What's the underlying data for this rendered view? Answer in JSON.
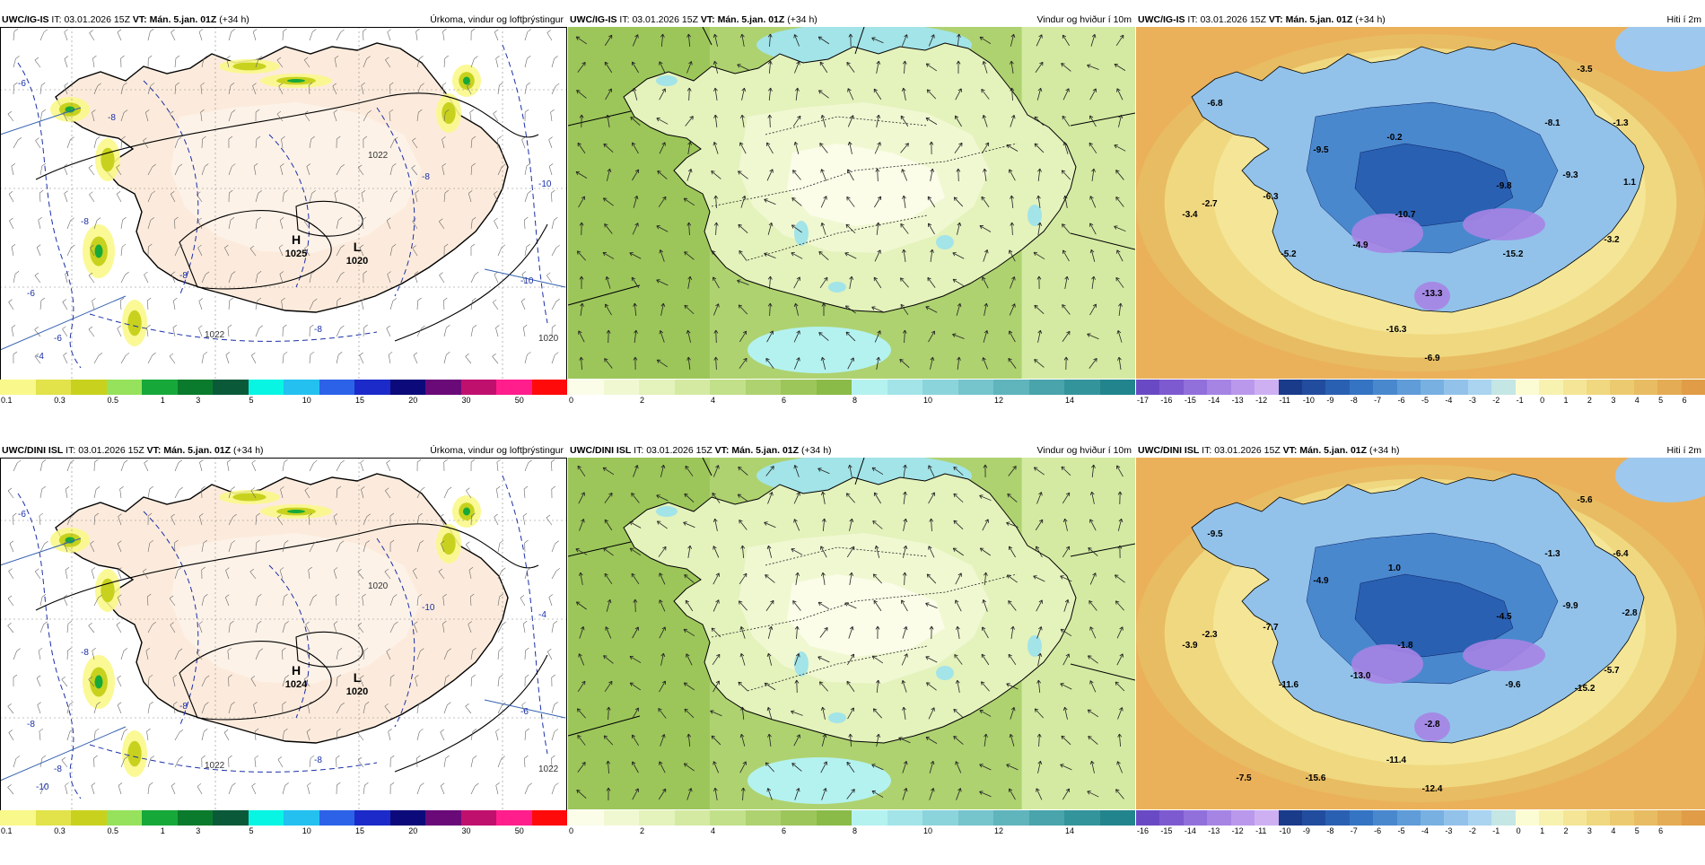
{
  "colors": {
    "land_precip": "#fcebdc",
    "sea_precip": "#ffffff",
    "isobar": "#1a2fa8",
    "wind_base": "#a7cd6a",
    "temp_sea": "#eab15a"
  },
  "rows": [
    {
      "panels": [
        {
          "kind": "precip",
          "model": "UWC/IG-IS",
          "it_label": "IT:",
          "it_value": "03.01.2026 15Z",
          "vt_label": "VT:",
          "vt_value": "Mán. 5.jan. 01Z",
          "lead": "(+34 h)",
          "title": "Úrkoma, vindur og loftþrýstingur",
          "pressure_centers": [
            {
              "type": "H",
              "value": "1025"
            },
            {
              "type": "L",
              "value": "1020"
            }
          ],
          "isobar_labels": [
            "1022",
            "1022",
            "1020"
          ],
          "dashed_labels": [
            "-6",
            "-8",
            "-8",
            "-8",
            "-6",
            "-4",
            "-8",
            "-10",
            "-10",
            "-6",
            "-8"
          ],
          "legend": {
            "colors": [
              "#f9f88a",
              "#e2e24b",
              "#c8d21e",
              "#96e25c",
              "#17a83a",
              "#0a7b2c",
              "#0a5a3a",
              "#08f5e4",
              "#23c0f0",
              "#2c62e8",
              "#1b2ac8",
              "#0c0a7a",
              "#6a0a78",
              "#c0106e",
              "#ff1e8c",
              "#ff0a0a"
            ],
            "ticks": [
              "0.1",
              "0.3",
              "0.5",
              "1",
              "3",
              "5",
              "10",
              "15",
              "20",
              "30",
              "50"
            ]
          }
        },
        {
          "kind": "wind",
          "model": "UWC/IG-IS",
          "it_label": "IT:",
          "it_value": "03.01.2026 15Z",
          "vt_label": "VT:",
          "vt_value": "Mán. 5.jan. 01Z",
          "lead": "(+34 h)",
          "title": "Vindur og hviður í 10m",
          "legend": {
            "colors": [
              "#fbfde8",
              "#f0f8d2",
              "#e4f2bc",
              "#d4eaa2",
              "#c2e08a",
              "#aed270",
              "#9cc65a",
              "#8abb48",
              "#b4f2f0",
              "#a2e4e8",
              "#8cd4dc",
              "#76c4cc",
              "#60b4bc",
              "#4aa4ac",
              "#34949c",
              "#22848c"
            ],
            "ticks": [
              "0",
              "2",
              "4",
              "6",
              "8",
              "10",
              "12",
              "14"
            ]
          }
        },
        {
          "kind": "temp",
          "model": "UWC/IG-IS",
          "it_label": "IT:",
          "it_value": "03.01.2026 15Z",
          "vt_label": "VT:",
          "vt_value": "Mán. 5.jan. 01Z",
          "lead": "(+34 h)",
          "title": "Hiti í 2m",
          "temp_labels": [
            "-3.5",
            "-6.8",
            "-9.5",
            "-0.2",
            "-8.1",
            "-1.3",
            "-9.8",
            "-9.3",
            "1.1",
            "-6.3",
            "-2.7",
            "-3.4",
            "-10.7",
            "-5.2",
            "-4.9",
            "-15.2",
            "-3.2",
            "-13.3",
            "-16.3",
            "-6.9"
          ],
          "legend": {
            "colors": [
              "#6a4ac4",
              "#7e5ad0",
              "#9270dc",
              "#a684e4",
              "#ba98ec",
              "#ceb0f2",
              "#1a3a8a",
              "#224c9e",
              "#2a60b2",
              "#3474c2",
              "#4a88ce",
              "#609cd8",
              "#78b0e2",
              "#92c2ea",
              "#aad4f0",
              "#c4e6e4",
              "#fcfcd4",
              "#f8f2b0",
              "#f4e696",
              "#f0d880",
              "#eccb70",
              "#e8bc62",
              "#e4ac54",
              "#e09c46"
            ],
            "ticks": [
              "-17",
              "-16",
              "-15",
              "-14",
              "-13",
              "-12",
              "-11",
              "-10",
              "-9",
              "-8",
              "-7",
              "-6",
              "-5",
              "-4",
              "-3",
              "-2",
              "-1",
              "0",
              "1",
              "2",
              "3",
              "4",
              "5",
              "6"
            ]
          }
        }
      ]
    },
    {
      "panels": [
        {
          "kind": "precip",
          "model": "UWC/DINI ISL",
          "it_label": "IT:",
          "it_value": "03.01.2026 15Z",
          "vt_label": "VT:",
          "vt_value": "Mán. 5.jan. 01Z",
          "lead": "(+34 h)",
          "title": "Úrkoma, vindur og loftþrýstingur",
          "pressure_centers": [
            {
              "type": "H",
              "value": "1024"
            },
            {
              "type": "L",
              "value": "1020"
            }
          ],
          "isobar_labels": [
            "1020",
            "1022",
            "1022"
          ],
          "dashed_labels": [
            "-6",
            "-8",
            "-8",
            "-8",
            "-8",
            "-10",
            "-10",
            "-4",
            "-6",
            "-8"
          ],
          "legend": {
            "colors": [
              "#f9f88a",
              "#e2e24b",
              "#c8d21e",
              "#96e25c",
              "#17a83a",
              "#0a7b2c",
              "#0a5a3a",
              "#08f5e4",
              "#23c0f0",
              "#2c62e8",
              "#1b2ac8",
              "#0c0a7a",
              "#6a0a78",
              "#c0106e",
              "#ff1e8c",
              "#ff0a0a"
            ],
            "ticks": [
              "0.1",
              "0.3",
              "0.5",
              "1",
              "3",
              "5",
              "10",
              "15",
              "20",
              "30",
              "50"
            ]
          }
        },
        {
          "kind": "wind",
          "model": "UWC/DINI ISL",
          "it_label": "IT:",
          "it_value": "03.01.2026 15Z",
          "vt_label": "VT:",
          "vt_value": "Mán. 5.jan. 01Z",
          "lead": "(+34 h)",
          "title": "Vindur og hviður í 10m",
          "legend": {
            "colors": [
              "#fbfde8",
              "#f0f8d2",
              "#e4f2bc",
              "#d4eaa2",
              "#c2e08a",
              "#aed270",
              "#9cc65a",
              "#8abb48",
              "#b4f2f0",
              "#a2e4e8",
              "#8cd4dc",
              "#76c4cc",
              "#60b4bc",
              "#4aa4ac",
              "#34949c",
              "#22848c"
            ],
            "ticks": [
              "0",
              "2",
              "4",
              "6",
              "8",
              "10",
              "12",
              "14"
            ]
          }
        },
        {
          "kind": "temp",
          "model": "UWC/DINI ISL",
          "it_label": "IT:",
          "it_value": "03.01.2026 15Z",
          "vt_label": "VT:",
          "vt_value": "Mán. 5.jan. 01Z",
          "lead": "(+34 h)",
          "title": "Hiti í 2m",
          "temp_labels": [
            "-5.6",
            "-9.5",
            "-4.9",
            "1.0",
            "-1.3",
            "-6.4",
            "-4.5",
            "-9.9",
            "-2.8",
            "-7.7",
            "-2.3",
            "-3.9",
            "-1.8",
            "-11.6",
            "-13.0",
            "-9.6",
            "-5.7",
            "-2.8",
            "-11.4",
            "-12.4",
            "-15.2",
            "-15.6",
            "-7.5"
          ],
          "legend": {
            "colors": [
              "#6a4ac4",
              "#7e5ad0",
              "#9270dc",
              "#a684e4",
              "#ba98ec",
              "#ceb0f2",
              "#1a3a8a",
              "#224c9e",
              "#2a60b2",
              "#3474c2",
              "#4a88ce",
              "#609cd8",
              "#78b0e2",
              "#92c2ea",
              "#aad4f0",
              "#c4e6e4",
              "#fcfcd4",
              "#f8f2b0",
              "#f4e696",
              "#f0d880",
              "#eccb70",
              "#e8bc62",
              "#e4ac54",
              "#e09c46"
            ],
            "ticks": [
              "-16",
              "-15",
              "-14",
              "-13",
              "-12",
              "-11",
              "-10",
              "-9",
              "-8",
              "-7",
              "-6",
              "-5",
              "-4",
              "-3",
              "-2",
              "-1",
              "0",
              "1",
              "2",
              "3",
              "4",
              "5",
              "6"
            ]
          }
        }
      ]
    }
  ]
}
